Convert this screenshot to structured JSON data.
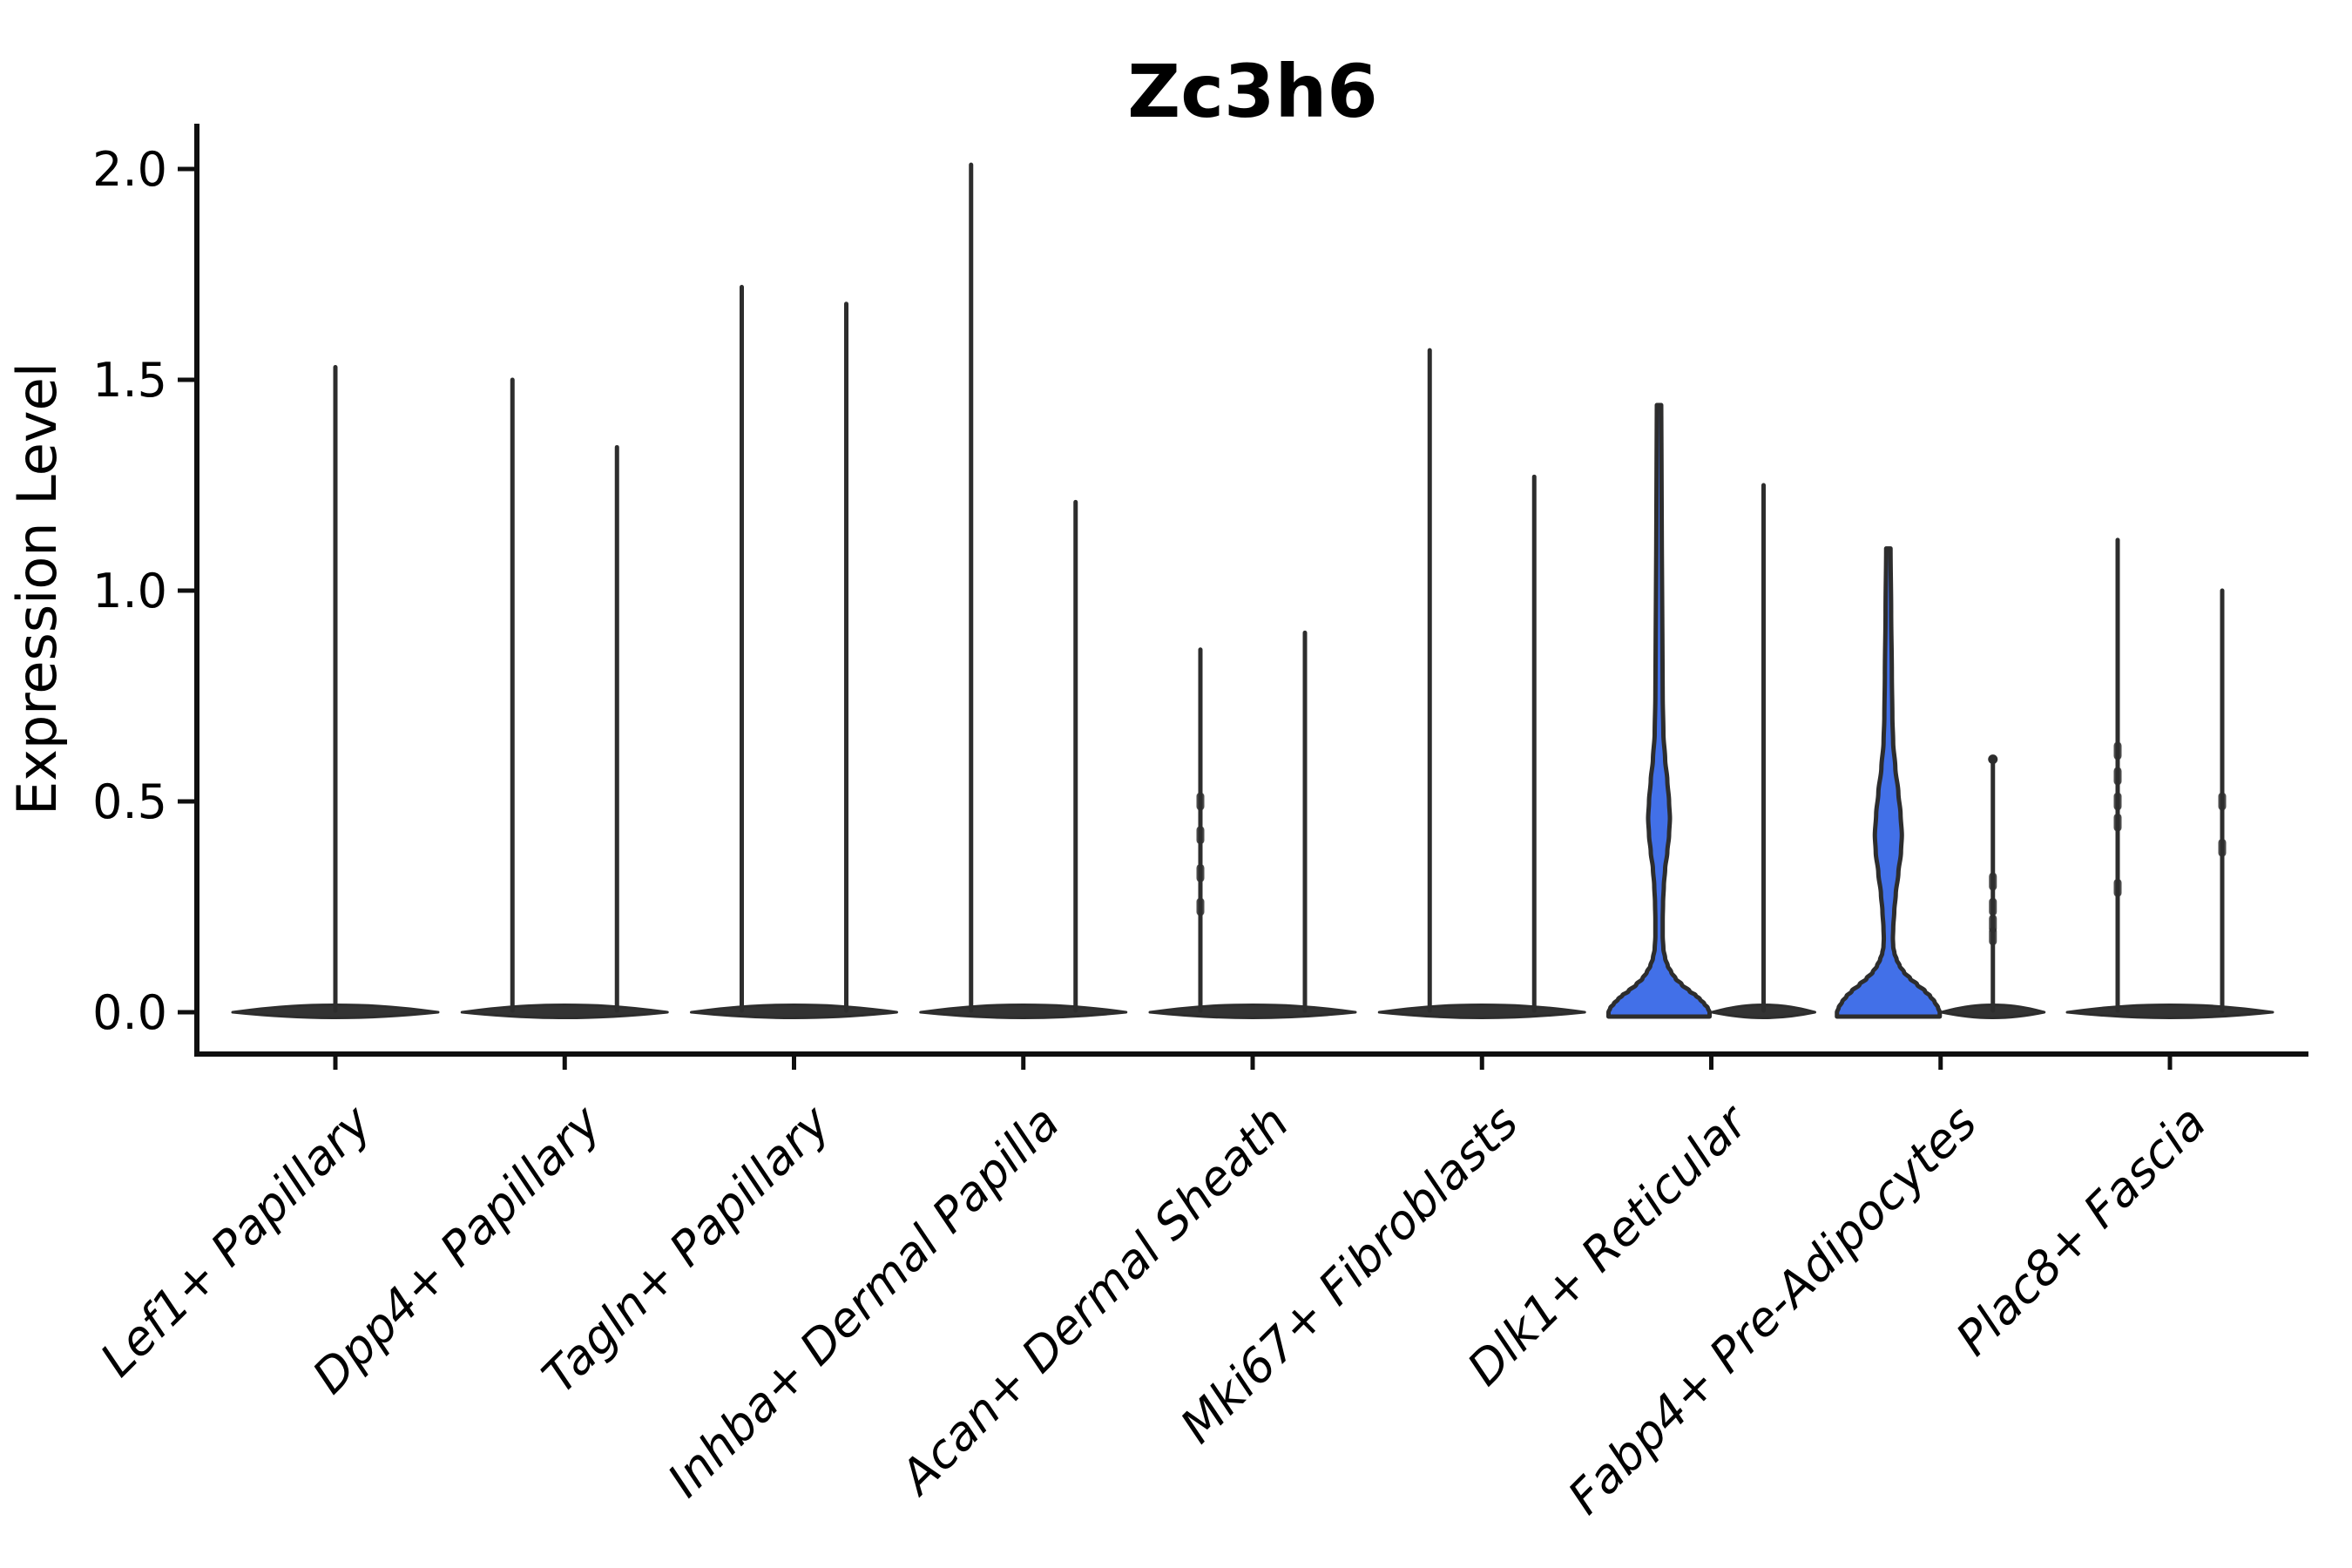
{
  "figure": {
    "title": "Zc3h6"
  },
  "axes": {
    "ylabel": "Expression Level",
    "ytick_labels": [
      "0.0",
      "0.5",
      "1.0",
      "1.5",
      "2.0"
    ],
    "xlabel_rotation_deg": 45
  },
  "chart_data": {
    "type": "violin",
    "title": "Zc3h6",
    "xlabel": "",
    "ylabel": "Expression Level",
    "ylim": [
      -0.1,
      2.11
    ],
    "ytick_values": [
      0.0,
      0.5,
      1.0,
      1.5,
      2.0
    ],
    "grid": false,
    "legend": "none",
    "categories": [
      "Lef1+ Papillary",
      "Dpp4+ Papillary",
      "Tagln+ Papillary",
      "Inhba+ Dermal Papilla",
      "Acan+ Dermal Sheath",
      "Mki67+ Fibroblasts",
      "Dlk1+ Reticular",
      "Fabp4+ Pre-Adipocytes",
      "Plac8+ Fascia"
    ],
    "description": "Most violins collapse to a flat dark puddle at 0 with a hairline spike up to the max expression value; Dlk1+ Reticular and Fabp4+ Pre-Adipocytes first violins are blue filled violins with a basal flare and a mid bulge.",
    "violins": [
      {
        "category_index": 0,
        "slot": 0,
        "max": 1.53,
        "style": "spike",
        "rel_width": 2.0
      },
      {
        "category_index": 1,
        "slot": -1,
        "max": 1.5,
        "style": "spike",
        "rel_width": 1.0
      },
      {
        "category_index": 1,
        "slot": 1,
        "max": 1.34,
        "style": "spike",
        "rel_width": 1.0
      },
      {
        "category_index": 2,
        "slot": -1,
        "max": 1.72,
        "style": "spike",
        "rel_width": 1.0
      },
      {
        "category_index": 2,
        "slot": 1,
        "max": 1.68,
        "style": "spike",
        "rel_width": 1.0
      },
      {
        "category_index": 3,
        "slot": -1,
        "max": 2.01,
        "style": "spike",
        "rel_width": 1.0
      },
      {
        "category_index": 3,
        "slot": 1,
        "max": 1.21,
        "style": "spike",
        "rel_width": 1.0
      },
      {
        "category_index": 4,
        "slot": -1,
        "max": 0.86,
        "style": "spike",
        "rel_width": 1.0,
        "nubs": [
          0.5,
          0.42,
          0.33,
          0.25
        ]
      },
      {
        "category_index": 4,
        "slot": 1,
        "max": 0.9,
        "style": "spike",
        "rel_width": 1.0
      },
      {
        "category_index": 5,
        "slot": -1,
        "max": 1.57,
        "style": "spike",
        "rel_width": 1.0
      },
      {
        "category_index": 5,
        "slot": 1,
        "max": 1.27,
        "style": "spike",
        "rel_width": 1.0
      },
      {
        "category_index": 6,
        "slot": -1,
        "max": 1.44,
        "style": "filled",
        "rel_width": 1.0,
        "profile": [
          [
            1.44,
            2.5
          ],
          [
            1.3,
            2.8
          ],
          [
            1.1,
            3.2
          ],
          [
            0.9,
            3.8
          ],
          [
            0.75,
            4.2
          ],
          [
            0.66,
            5.0
          ],
          [
            0.6,
            7.0
          ],
          [
            0.55,
            9.5
          ],
          [
            0.5,
            11.5
          ],
          [
            0.46,
            12.5
          ],
          [
            0.42,
            11.5
          ],
          [
            0.38,
            9.5
          ],
          [
            0.34,
            7.0
          ],
          [
            0.3,
            5.5
          ],
          [
            0.26,
            4.6
          ],
          [
            0.22,
            4.2
          ],
          [
            0.18,
            4.2
          ],
          [
            0.15,
            5.0
          ],
          [
            0.128,
            7.0
          ],
          [
            0.11,
            10.0
          ],
          [
            0.095,
            14.0
          ],
          [
            0.08,
            19.0
          ],
          [
            0.066,
            26.0
          ],
          [
            0.05,
            35.0
          ],
          [
            0.04,
            42.0
          ],
          [
            0.031,
            47.0
          ],
          [
            0.02,
            52.0
          ],
          [
            0.01,
            56.0
          ],
          [
            0.0,
            58.0
          ]
        ]
      },
      {
        "category_index": 6,
        "slot": 1,
        "max": 1.25,
        "style": "spike",
        "rel_width": 1.0
      },
      {
        "category_index": 7,
        "slot": -1,
        "max": 1.1,
        "style": "filled",
        "rel_width": 1.0,
        "profile": [
          [
            1.1,
            2.5
          ],
          [
            0.95,
            3.2
          ],
          [
            0.8,
            4.0
          ],
          [
            0.7,
            4.6
          ],
          [
            0.64,
            5.5
          ],
          [
            0.58,
            8.0
          ],
          [
            0.52,
            11.5
          ],
          [
            0.47,
            14.0
          ],
          [
            0.42,
            15.5
          ],
          [
            0.38,
            14.5
          ],
          [
            0.33,
            11.5
          ],
          [
            0.28,
            8.5
          ],
          [
            0.24,
            6.8
          ],
          [
            0.2,
            5.6
          ],
          [
            0.175,
            5.2
          ],
          [
            0.155,
            5.6
          ],
          [
            0.14,
            7.0
          ],
          [
            0.125,
            9.5
          ],
          [
            0.11,
            13.0
          ],
          [
            0.095,
            18.0
          ],
          [
            0.08,
            25.0
          ],
          [
            0.066,
            33.0
          ],
          [
            0.05,
            42.0
          ],
          [
            0.038,
            48.0
          ],
          [
            0.025,
            53.0
          ],
          [
            0.011,
            57.0
          ],
          [
            0.0,
            59.0
          ]
        ]
      },
      {
        "category_index": 7,
        "slot": 1,
        "max": 0.6,
        "style": "spike",
        "rel_width": 1.0,
        "top_knob": true,
        "nubs": [
          0.31,
          0.25,
          0.21,
          0.18
        ]
      },
      {
        "category_index": 8,
        "slot": -1,
        "max": 1.12,
        "style": "spike",
        "rel_width": 1.0,
        "nubs": [
          0.62,
          0.56,
          0.5,
          0.45,
          0.295
        ]
      },
      {
        "category_index": 8,
        "slot": 1,
        "max": 1.0,
        "style": "spike",
        "rel_width": 1.0,
        "nubs": [
          0.5,
          0.39
        ]
      }
    ],
    "colors": {
      "filled_violin": "#4270E8",
      "violin_line": "#2d2d2d",
      "flat_strip": "#333333",
      "axis": "#0f0f0f",
      "background": "#ffffff"
    }
  }
}
